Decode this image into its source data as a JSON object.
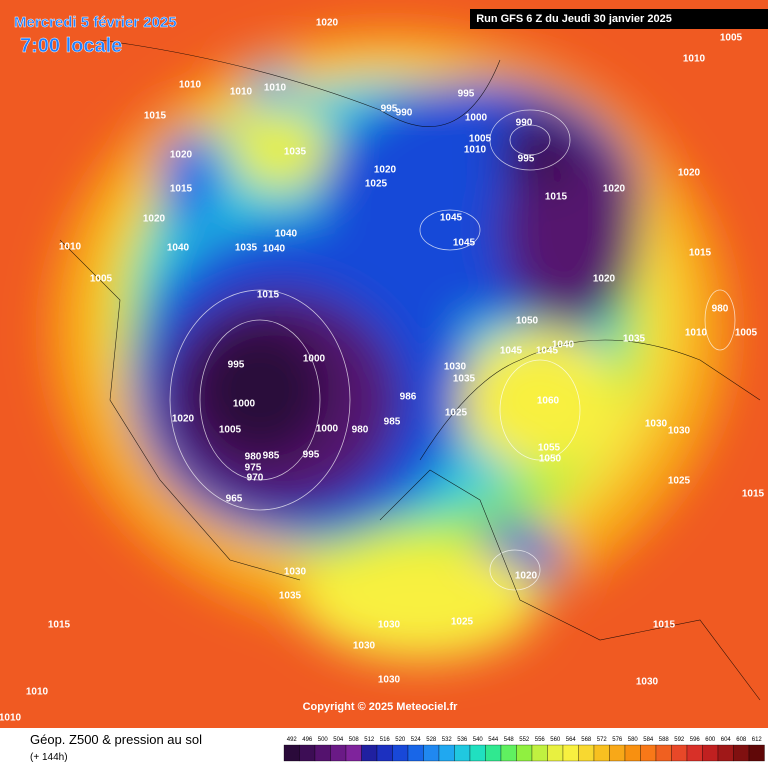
{
  "header": {
    "date": "Mercredi 5 février 2025",
    "time": "7:00 locale",
    "run": "Run GFS 6 Z du Jeudi 30 janvier 2025"
  },
  "copyright": "Copyright © 2025 Meteociel.fr",
  "legend": {
    "title": "Géop. Z500 & pression au sol",
    "lead": "(+ 144h)",
    "values": [
      492,
      496,
      500,
      504,
      508,
      512,
      516,
      520,
      524,
      528,
      532,
      536,
      540,
      544,
      548,
      552,
      556,
      560,
      564,
      568,
      572,
      576,
      580,
      584,
      588,
      592,
      596,
      600,
      604,
      608,
      612
    ],
    "colors": [
      "#2a0a3a",
      "#3d0d55",
      "#54126e",
      "#6a1a86",
      "#7f239c",
      "#2020a0",
      "#1c30c0",
      "#1848d8",
      "#1866e8",
      "#2088f0",
      "#20a8f0",
      "#20c8e0",
      "#20e0c0",
      "#30e890",
      "#60f060",
      "#90f040",
      "#c0f040",
      "#e8f040",
      "#f8f040",
      "#f8d830",
      "#f8c020",
      "#f8a818",
      "#f89010",
      "#f87818",
      "#f06020",
      "#e84828",
      "#d83028",
      "#c02020",
      "#a01818",
      "#801010",
      "#600808"
    ]
  },
  "isobars": [
    1020,
    1005,
    1010,
    1010,
    1010,
    1010,
    1015,
    995,
    990,
    995,
    1000,
    1005,
    1010,
    990,
    995,
    1020,
    1035,
    1020,
    1025,
    1015,
    1015,
    1020,
    1020,
    1020,
    1045,
    1040,
    1040,
    1035,
    1040,
    1045,
    1010,
    1015,
    1005,
    1020,
    1015,
    980,
    1050,
    1010,
    1005,
    1035,
    1040,
    1045,
    1045,
    995,
    1000,
    1030,
    1035,
    986,
    1000,
    1060,
    1025,
    1020,
    1005,
    1000,
    980,
    985,
    1030,
    1030,
    1055,
    1050,
    980,
    985,
    995,
    975,
    970,
    965,
    1025,
    1015,
    1020,
    1030,
    1035,
    1015,
    1025,
    1030,
    1015,
    1030,
    1030,
    1030,
    1010,
    1010
  ]
}
